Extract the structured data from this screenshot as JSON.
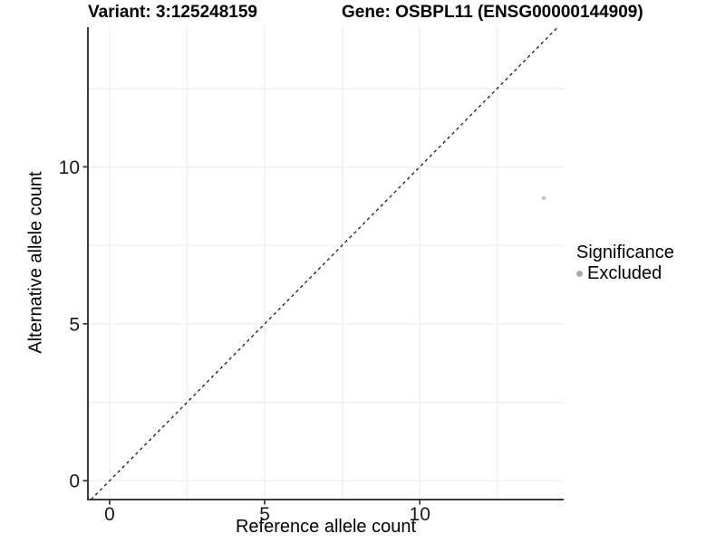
{
  "chart_data": {
    "type": "scatter",
    "titles": {
      "variant": "Variant: 3:125248159",
      "gene": "Gene: OSBPL11 (ENSG00000144909)"
    },
    "xlabel": "Reference allele count",
    "ylabel": "Alternative allele count",
    "xlim": [
      -0.7,
      14.64
    ],
    "ylim": [
      -0.6,
      14.45
    ],
    "x_ticks": [
      0,
      5,
      10
    ],
    "y_ticks": [
      0,
      5,
      10
    ],
    "grid_breaks": [
      0,
      2.5,
      5,
      7.5,
      10,
      12.5
    ],
    "grid": true,
    "points": [
      {
        "x": 14,
        "y": 9,
        "significance": "Excluded"
      }
    ],
    "identity_line": {
      "slope": 1,
      "intercept": 0,
      "style": "dashed"
    },
    "legend": {
      "title": "Significance",
      "position": "right",
      "items": [
        {
          "label": "Excluded",
          "color": "#ababab"
        }
      ]
    },
    "colors": {
      "point": "#c7c7c7",
      "grid": "#ededed",
      "axis": "#3c3c3c",
      "tick_text": "#1a1a1a",
      "identity_line": "#1a1a1a",
      "background": "#ffffff"
    }
  }
}
